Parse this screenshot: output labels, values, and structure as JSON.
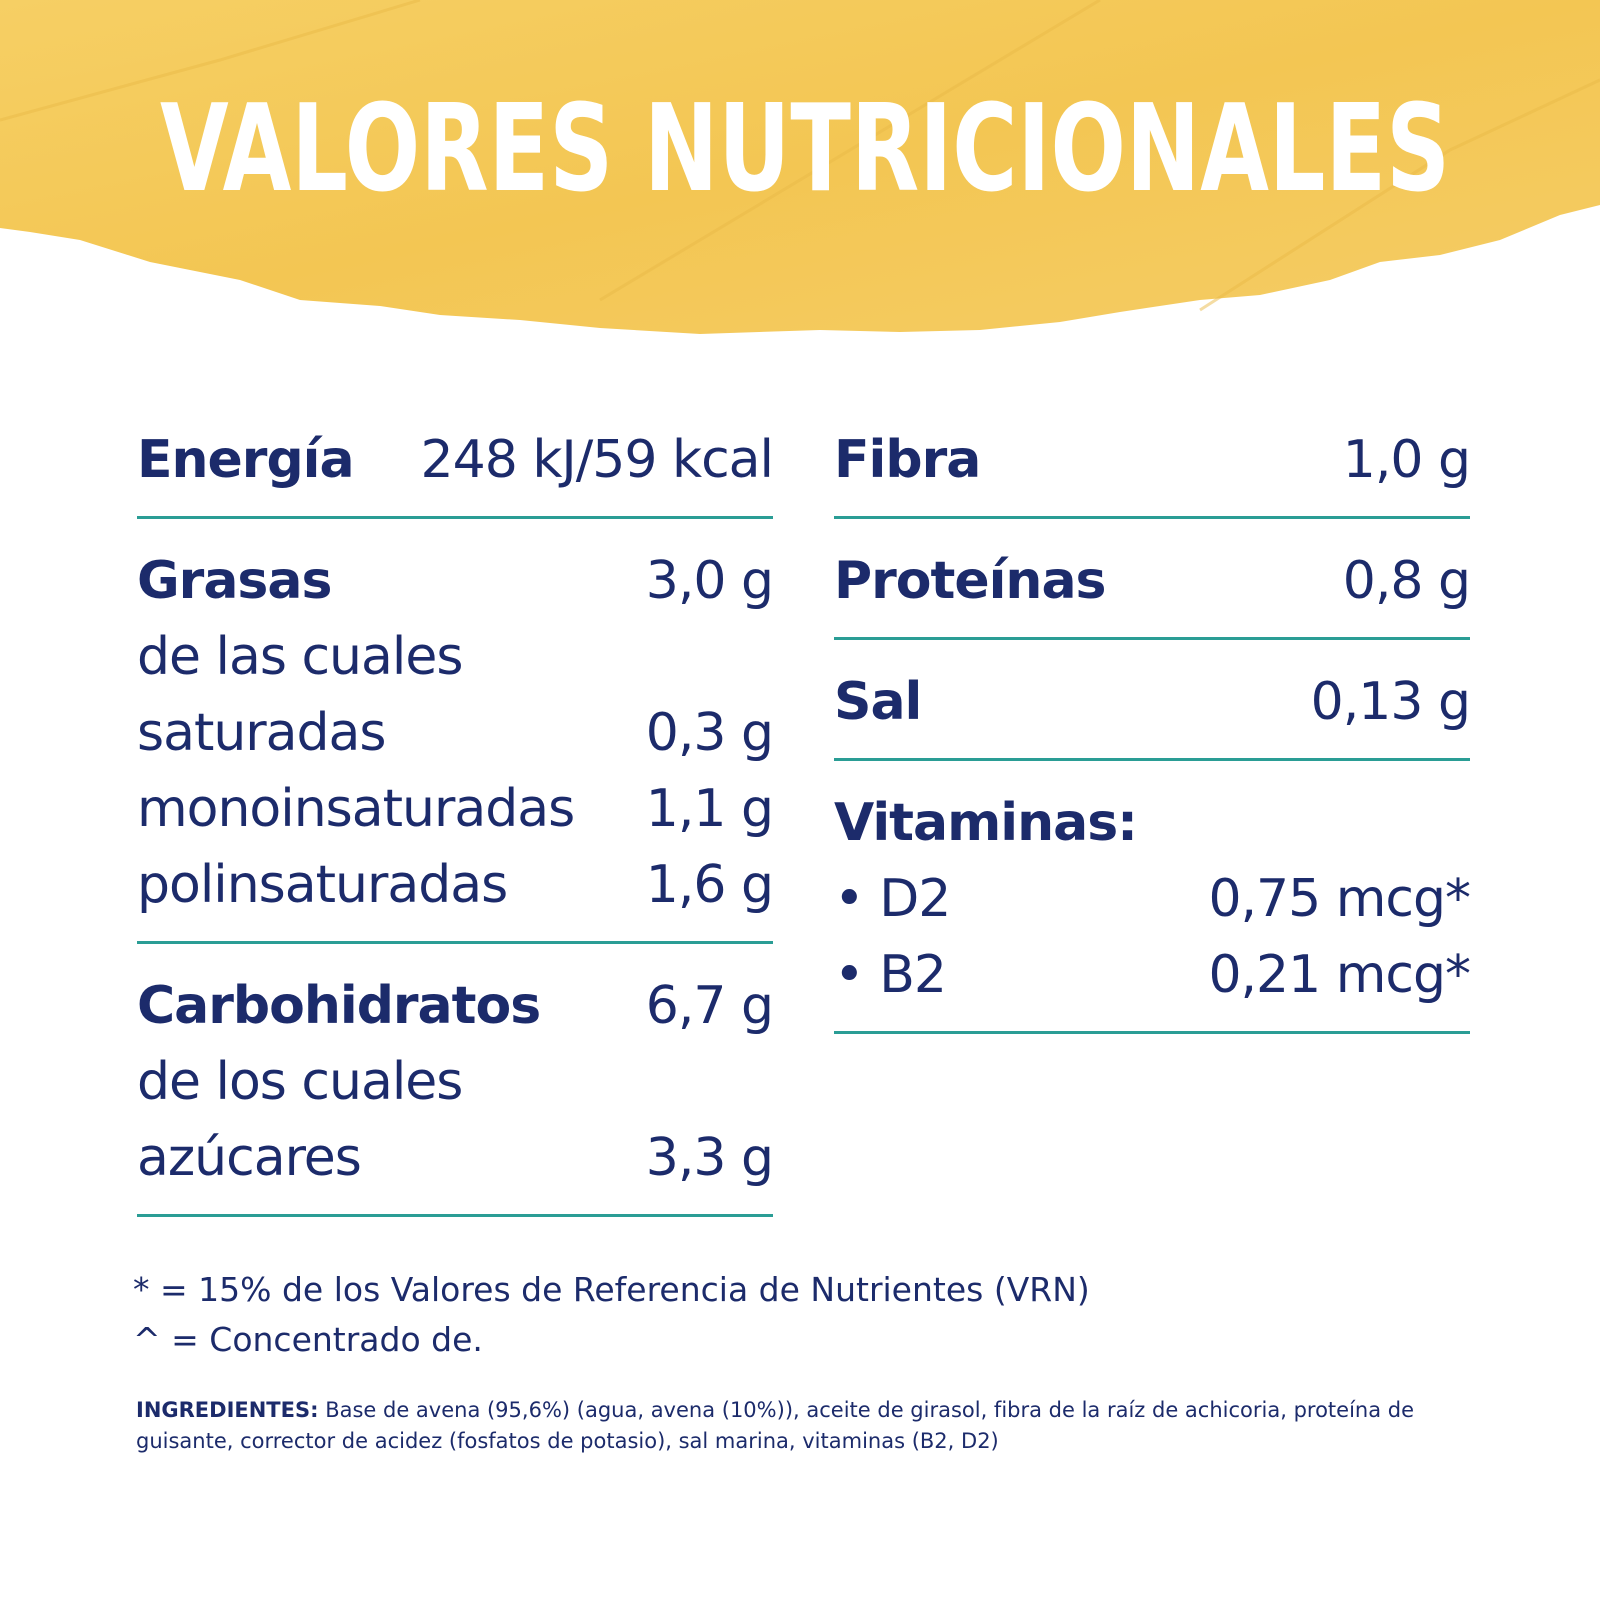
{
  "title": "VALORES NUTRICIONALES",
  "columns": [
    [
      {
        "rows": [
          {
            "label": "Energía",
            "value": "248 kJ/59 kcal"
          }
        ]
      },
      {
        "rows": [
          {
            "label": "Grasas",
            "value": "3,0 g"
          },
          {
            "label": "de las cuales"
          },
          {
            "label": "saturadas",
            "value": "0,3 g"
          },
          {
            "label": "monoinsaturadas",
            "value": "1,1 g"
          },
          {
            "label": "polinsaturadas",
            "value": "1,6 g"
          }
        ]
      },
      {
        "rows": [
          {
            "label": "Carbohidratos",
            "value": "6,7 g"
          },
          {
            "label": "de los cuales"
          },
          {
            "label": "azúcares",
            "value": "3,3 g"
          }
        ]
      }
    ],
    [
      {
        "rows": [
          {
            "label": "Fibra",
            "value": "1,0 g"
          }
        ]
      },
      {
        "rows": [
          {
            "label": "Proteínas",
            "value": "0,8 g"
          }
        ]
      },
      {
        "rows": [
          {
            "label": "Sal",
            "value": "0,13 g"
          }
        ]
      },
      {
        "rows": [
          {
            "label": "Vitaminas:"
          },
          {
            "label": "• D2",
            "value": "0,75 mcg*"
          },
          {
            "label": "• B2",
            "value": "0,21 mcg*"
          }
        ]
      }
    ]
  ],
  "footnotes": [
    "* = 15% de los Valores de Referencia de Nutrientes (VRN)",
    "^ = Concentrado de."
  ],
  "ingredients": {
    "label": "INGREDIENTES:",
    "text": "Base de avena (95,6%) (agua, avena (10%)), aceite de girasol, fibra de la raíz de achicoria, proteína de guisante, corrector de acidez (fosfatos de potasio), sal marina, vitaminas (B2, D2)"
  }
}
